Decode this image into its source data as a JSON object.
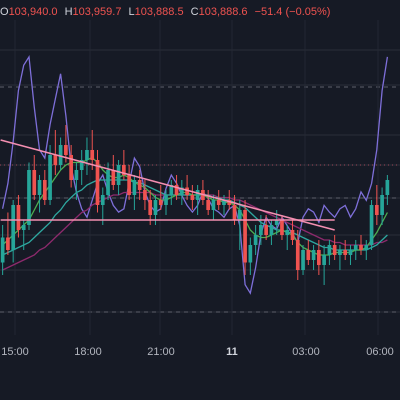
{
  "ohlc": {
    "open_key": "O",
    "open": "103,940.0",
    "high_key": "H",
    "high": "103,959.7",
    "low_key": "L",
    "low": "103,888.5",
    "close_key": "C",
    "close": "103,888.6",
    "change": "−51.4 (−0.05%)"
  },
  "colors": {
    "background": "#161a25",
    "up": "#26a69a",
    "down": "#ef5350",
    "trendline": "#f48fb1",
    "indicator_line": "#7e6fd9",
    "ma_fast": "#4caf50",
    "ma_slow": "#2ea8a0",
    "ma_long": "#8e2a6d"
  },
  "chart_data": {
    "type": "line",
    "x_ticks": [
      "15:00",
      "18:00",
      "21:00",
      "11",
      "03:00",
      "06:00"
    ],
    "bold_ticks": [
      "11"
    ],
    "candles": [
      [
        45,
        60,
        40,
        55
      ],
      [
        55,
        65,
        48,
        50
      ],
      [
        50,
        70,
        45,
        68
      ],
      [
        68,
        72,
        55,
        58
      ],
      [
        58,
        62,
        50,
        60
      ],
      [
        60,
        85,
        58,
        82
      ],
      [
        82,
        88,
        70,
        72
      ],
      [
        72,
        80,
        65,
        78
      ],
      [
        78,
        82,
        68,
        70
      ],
      [
        70,
        92,
        68,
        88
      ],
      [
        88,
        98,
        80,
        84
      ],
      [
        84,
        95,
        82,
        92
      ],
      [
        92,
        100,
        85,
        88
      ],
      [
        88,
        92,
        75,
        78
      ],
      [
        78,
        85,
        70,
        82
      ],
      [
        82,
        90,
        76,
        86
      ],
      [
        86,
        95,
        80,
        90
      ],
      [
        90,
        98,
        82,
        86
      ],
      [
        86,
        90,
        65,
        68
      ],
      [
        68,
        75,
        60,
        72
      ],
      [
        72,
        85,
        70,
        82
      ],
      [
        82,
        88,
        74,
        76
      ],
      [
        76,
        86,
        72,
        84
      ],
      [
        84,
        90,
        78,
        80
      ],
      [
        80,
        84,
        70,
        72
      ],
      [
        72,
        80,
        66,
        78
      ],
      [
        78,
        82,
        70,
        74
      ],
      [
        74,
        78,
        66,
        70
      ],
      [
        70,
        74,
        60,
        64
      ],
      [
        64,
        72,
        60,
        70
      ],
      [
        70,
        76,
        66,
        68
      ],
      [
        68,
        74,
        64,
        72
      ],
      [
        72,
        78,
        68,
        76
      ],
      [
        76,
        80,
        70,
        72
      ],
      [
        72,
        78,
        68,
        75
      ],
      [
        75,
        80,
        70,
        72
      ],
      [
        72,
        76,
        66,
        70
      ],
      [
        70,
        76,
        64,
        74
      ],
      [
        74,
        78,
        68,
        70
      ],
      [
        70,
        74,
        64,
        66
      ],
      [
        66,
        72,
        62,
        70
      ],
      [
        70,
        74,
        66,
        68
      ],
      [
        68,
        72,
        64,
        70
      ],
      [
        70,
        74,
        66,
        68
      ],
      [
        68,
        72,
        60,
        62
      ],
      [
        62,
        70,
        50,
        66
      ],
      [
        66,
        70,
        40,
        45
      ],
      [
        45,
        55,
        40,
        52
      ],
      [
        52,
        60,
        48,
        56
      ],
      [
        56,
        64,
        52,
        60
      ],
      [
        60,
        64,
        54,
        56
      ],
      [
        56,
        62,
        52,
        60
      ],
      [
        60,
        66,
        56,
        62
      ],
      [
        62,
        64,
        54,
        56
      ],
      [
        56,
        60,
        50,
        58
      ],
      [
        58,
        62,
        52,
        54
      ],
      [
        54,
        58,
        38,
        42
      ],
      [
        42,
        52,
        40,
        50
      ],
      [
        50,
        54,
        44,
        46
      ],
      [
        46,
        52,
        42,
        50
      ],
      [
        50,
        54,
        40,
        44
      ],
      [
        44,
        52,
        36,
        48
      ],
      [
        48,
        54,
        44,
        52
      ],
      [
        52,
        56,
        46,
        48
      ],
      [
        48,
        52,
        42,
        50
      ],
      [
        50,
        54,
        46,
        48
      ],
      [
        48,
        52,
        44,
        50
      ],
      [
        50,
        54,
        46,
        52
      ],
      [
        52,
        56,
        48,
        50
      ],
      [
        50,
        54,
        46,
        52
      ],
      [
        52,
        70,
        50,
        68
      ],
      [
        68,
        76,
        60,
        64
      ],
      [
        64,
        75,
        60,
        72
      ],
      [
        72,
        80,
        68,
        78
      ]
    ],
    "ma_fast": [
      52,
      54,
      56,
      58,
      60,
      62,
      66,
      70,
      73,
      76,
      79,
      82,
      84,
      85,
      85,
      85,
      86,
      87,
      85,
      82,
      80,
      79,
      79,
      80,
      79,
      77,
      76,
      75,
      73,
      71,
      70,
      70,
      71,
      72,
      73,
      73,
      72,
      72,
      72,
      71,
      70,
      70,
      69,
      69,
      68,
      66,
      62,
      58,
      56,
      55,
      55,
      56,
      57,
      58,
      57,
      56,
      53,
      51,
      50,
      49,
      48,
      48,
      48,
      49,
      49,
      49,
      49,
      50,
      50,
      51,
      54,
      57,
      61,
      65
    ],
    "ma_slow": [
      48,
      49,
      50,
      51,
      52,
      53,
      55,
      57,
      59,
      61,
      64,
      66,
      69,
      71,
      73,
      74,
      76,
      77,
      78,
      78,
      78,
      78,
      78,
      78,
      78,
      77,
      77,
      76,
      75,
      74,
      73,
      72,
      72,
      72,
      72,
      72,
      72,
      72,
      72,
      72,
      71,
      71,
      70,
      70,
      69,
      68,
      67,
      65,
      63,
      61,
      60,
      59,
      58,
      58,
      57,
      57,
      56,
      55,
      54,
      53,
      52,
      51,
      51,
      50,
      50,
      50,
      50,
      50,
      50,
      50,
      51,
      52,
      54,
      56
    ],
    "ma_long": [
      42,
      43,
      44,
      45,
      46,
      47,
      48,
      50,
      51,
      53,
      55,
      57,
      59,
      61,
      63,
      65,
      66,
      68,
      69,
      70,
      71,
      72,
      72,
      73,
      73,
      73,
      73,
      73,
      73,
      72,
      72,
      72,
      72,
      72,
      72,
      72,
      72,
      72,
      72,
      72,
      72,
      71,
      71,
      71,
      70,
      70,
      69,
      68,
      67,
      66,
      65,
      64,
      63,
      62,
      61,
      60,
      59,
      58,
      57,
      56,
      55,
      54,
      54,
      53,
      53,
      52,
      52,
      52,
      52,
      52,
      52,
      53,
      53,
      54
    ],
    "oscillator": [
      60,
      75,
      100,
      130,
      145,
      150,
      120,
      95,
      90,
      110,
      125,
      140,
      115,
      85,
      70,
      60,
      55,
      65,
      75,
      80,
      70,
      62,
      58,
      60,
      75,
      90,
      85,
      70,
      62,
      58,
      60,
      72,
      80,
      75,
      68,
      62,
      58,
      62,
      70,
      66,
      60,
      58,
      55,
      60,
      62,
      50,
      15,
      10,
      25,
      45,
      55,
      50,
      48,
      55,
      50,
      45,
      40,
      55,
      60,
      58,
      52,
      62,
      58,
      55,
      60,
      62,
      55,
      60,
      70,
      65,
      75,
      95,
      130,
      150
    ],
    "trendlines": [
      {
        "from": [
          0,
          94
        ],
        "to": [
          63,
          58
        ]
      },
      {
        "from": [
          0,
          62
        ],
        "to": [
          63,
          62
        ]
      }
    ]
  }
}
